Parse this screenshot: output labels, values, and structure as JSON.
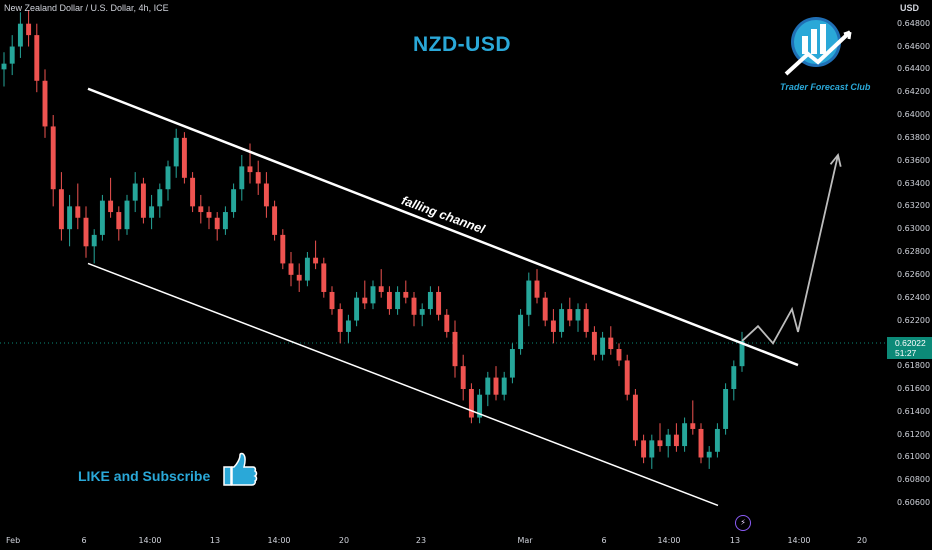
{
  "header": {
    "instrument": "New Zealand Dollar / U.S. Dollar, 4h, ICE",
    "currency": "USD"
  },
  "title": "NZD-USD",
  "annotation": "falling channel",
  "cta": "LIKE and Subscribe",
  "logo_text": "Trader Forecast Club",
  "icons": {
    "thumb": "thumbs-up-icon",
    "logo": "trader-forecast-club-logo",
    "bolt": "lightning-icon"
  },
  "colors": {
    "bull": "#26a69a",
    "bear": "#ef5350",
    "accent": "#2aa8d8",
    "price_label": "#0c8a78"
  },
  "current_price": {
    "value": "0.62022",
    "countdown": "51:27"
  },
  "chart_data": {
    "type": "candlestick",
    "y_ticks": [
      "0.64800",
      "0.64600",
      "0.64400",
      "0.64200",
      "0.64000",
      "0.63800",
      "0.63600",
      "0.63400",
      "0.63200",
      "0.63000",
      "0.62800",
      "0.62600",
      "0.62400",
      "0.62200",
      "0.61800",
      "0.61600",
      "0.61400",
      "0.61200",
      "0.61000",
      "0.60800",
      "0.60600"
    ],
    "ylim": [
      0.6054,
      0.6492
    ],
    "x_ticks": [
      "Feb",
      "6",
      "14:00",
      "13",
      "14:00",
      "20",
      "23",
      "Mar",
      "6",
      "14:00",
      "13",
      "14:00",
      "20"
    ],
    "candles": [
      [
        0.644,
        0.6455,
        0.6425,
        0.6445
      ],
      [
        0.6445,
        0.647,
        0.6435,
        0.646
      ],
      [
        0.646,
        0.649,
        0.645,
        0.648
      ],
      [
        0.648,
        0.6492,
        0.646,
        0.647
      ],
      [
        0.647,
        0.648,
        0.642,
        0.643
      ],
      [
        0.643,
        0.644,
        0.638,
        0.639
      ],
      [
        0.639,
        0.64,
        0.632,
        0.6335
      ],
      [
        0.6335,
        0.635,
        0.629,
        0.63
      ],
      [
        0.63,
        0.633,
        0.6285,
        0.632
      ],
      [
        0.632,
        0.634,
        0.63,
        0.631
      ],
      [
        0.631,
        0.632,
        0.6275,
        0.6285
      ],
      [
        0.6285,
        0.63,
        0.627,
        0.6295
      ],
      [
        0.6295,
        0.633,
        0.629,
        0.6325
      ],
      [
        0.6325,
        0.6345,
        0.631,
        0.6315
      ],
      [
        0.6315,
        0.632,
        0.629,
        0.63
      ],
      [
        0.63,
        0.633,
        0.6295,
        0.6325
      ],
      [
        0.6325,
        0.635,
        0.6315,
        0.634
      ],
      [
        0.634,
        0.6345,
        0.6305,
        0.631
      ],
      [
        0.631,
        0.633,
        0.63,
        0.632
      ],
      [
        0.632,
        0.634,
        0.631,
        0.6335
      ],
      [
        0.6335,
        0.636,
        0.6325,
        0.6355
      ],
      [
        0.6355,
        0.6388,
        0.6345,
        0.638
      ],
      [
        0.638,
        0.6385,
        0.634,
        0.6345
      ],
      [
        0.6345,
        0.635,
        0.6315,
        0.632
      ],
      [
        0.632,
        0.633,
        0.6305,
        0.6315
      ],
      [
        0.6315,
        0.632,
        0.63,
        0.631
      ],
      [
        0.631,
        0.6315,
        0.629,
        0.63
      ],
      [
        0.63,
        0.632,
        0.6295,
        0.6315
      ],
      [
        0.6315,
        0.634,
        0.631,
        0.6335
      ],
      [
        0.6335,
        0.6365,
        0.6325,
        0.6355
      ],
      [
        0.6355,
        0.6375,
        0.634,
        0.635
      ],
      [
        0.635,
        0.636,
        0.633,
        0.634
      ],
      [
        0.634,
        0.635,
        0.631,
        0.632
      ],
      [
        0.632,
        0.6325,
        0.629,
        0.6295
      ],
      [
        0.6295,
        0.63,
        0.6265,
        0.627
      ],
      [
        0.627,
        0.628,
        0.625,
        0.626
      ],
      [
        0.626,
        0.627,
        0.6245,
        0.6255
      ],
      [
        0.6255,
        0.628,
        0.625,
        0.6275
      ],
      [
        0.6275,
        0.629,
        0.6265,
        0.627
      ],
      [
        0.627,
        0.6275,
        0.624,
        0.6245
      ],
      [
        0.6245,
        0.625,
        0.6225,
        0.623
      ],
      [
        0.623,
        0.6235,
        0.62,
        0.621
      ],
      [
        0.621,
        0.6225,
        0.62,
        0.622
      ],
      [
        0.622,
        0.6245,
        0.6215,
        0.624
      ],
      [
        0.624,
        0.6255,
        0.623,
        0.6235
      ],
      [
        0.6235,
        0.6255,
        0.623,
        0.625
      ],
      [
        0.625,
        0.6265,
        0.624,
        0.6245
      ],
      [
        0.6245,
        0.625,
        0.6225,
        0.623
      ],
      [
        0.623,
        0.625,
        0.6225,
        0.6245
      ],
      [
        0.6245,
        0.6255,
        0.6235,
        0.624
      ],
      [
        0.624,
        0.6245,
        0.6215,
        0.6225
      ],
      [
        0.6225,
        0.6235,
        0.6215,
        0.623
      ],
      [
        0.623,
        0.625,
        0.6225,
        0.6245
      ],
      [
        0.6245,
        0.625,
        0.622,
        0.6225
      ],
      [
        0.6225,
        0.623,
        0.6205,
        0.621
      ],
      [
        0.621,
        0.622,
        0.617,
        0.618
      ],
      [
        0.618,
        0.619,
        0.615,
        0.616
      ],
      [
        0.616,
        0.6165,
        0.613,
        0.6135
      ],
      [
        0.6135,
        0.616,
        0.613,
        0.6155
      ],
      [
        0.6155,
        0.6175,
        0.6145,
        0.617
      ],
      [
        0.617,
        0.618,
        0.615,
        0.6155
      ],
      [
        0.6155,
        0.6175,
        0.615,
        0.617
      ],
      [
        0.617,
        0.62,
        0.6165,
        0.6195
      ],
      [
        0.6195,
        0.623,
        0.619,
        0.6225
      ],
      [
        0.6225,
        0.6262,
        0.6215,
        0.6255
      ],
      [
        0.6255,
        0.6265,
        0.6235,
        0.624
      ],
      [
        0.624,
        0.6245,
        0.6215,
        0.622
      ],
      [
        0.622,
        0.623,
        0.62,
        0.621
      ],
      [
        0.621,
        0.6235,
        0.6205,
        0.623
      ],
      [
        0.623,
        0.624,
        0.6215,
        0.622
      ],
      [
        0.622,
        0.6235,
        0.621,
        0.623
      ],
      [
        0.623,
        0.6235,
        0.6205,
        0.621
      ],
      [
        0.621,
        0.6215,
        0.6185,
        0.619
      ],
      [
        0.619,
        0.621,
        0.6185,
        0.6205
      ],
      [
        0.6205,
        0.6215,
        0.619,
        0.6195
      ],
      [
        0.6195,
        0.62,
        0.618,
        0.6185
      ],
      [
        0.6185,
        0.619,
        0.615,
        0.6155
      ],
      [
        0.6155,
        0.616,
        0.611,
        0.6115
      ],
      [
        0.6115,
        0.612,
        0.6095,
        0.61
      ],
      [
        0.61,
        0.612,
        0.609,
        0.6115
      ],
      [
        0.6115,
        0.613,
        0.6105,
        0.611
      ],
      [
        0.611,
        0.6125,
        0.61,
        0.612
      ],
      [
        0.612,
        0.613,
        0.6105,
        0.611
      ],
      [
        0.611,
        0.6135,
        0.6105,
        0.613
      ],
      [
        0.613,
        0.615,
        0.612,
        0.6125
      ],
      [
        0.6125,
        0.613,
        0.6095,
        0.61
      ],
      [
        0.61,
        0.611,
        0.609,
        0.6105
      ],
      [
        0.6105,
        0.613,
        0.61,
        0.6125
      ],
      [
        0.6125,
        0.6165,
        0.612,
        0.616
      ],
      [
        0.616,
        0.6185,
        0.615,
        0.618
      ],
      [
        0.618,
        0.621,
        0.6175,
        0.6202
      ]
    ],
    "candle_x_range": [
      4,
      742
    ],
    "channel_upper": [
      [
        88,
        0.6423
      ],
      [
        798,
        0.6181
      ]
    ],
    "channel_lower": [
      [
        88,
        0.627
      ],
      [
        718,
        0.6058
      ]
    ],
    "projection": [
      [
        742,
        0.6202
      ],
      [
        758,
        0.6215
      ],
      [
        773,
        0.62
      ],
      [
        792,
        0.623
      ],
      [
        798,
        0.621
      ],
      [
        838,
        0.6365
      ]
    ]
  }
}
